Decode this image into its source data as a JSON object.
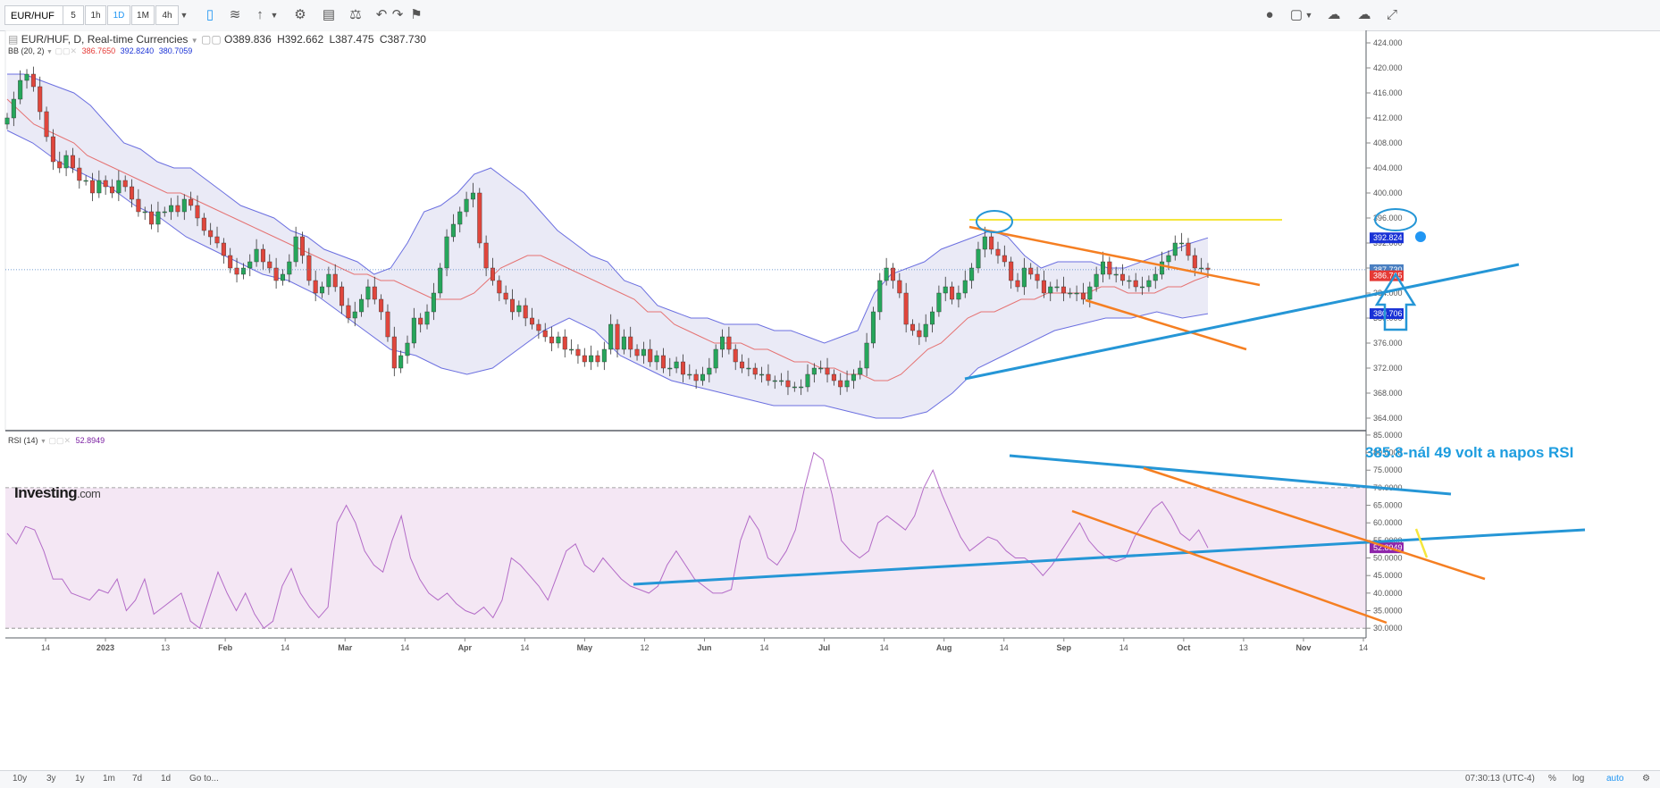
{
  "toolbar": {
    "symbol": "EUR/HUF",
    "intervals": [
      "5",
      "1h",
      "1D",
      "1M",
      "4h"
    ],
    "active_interval": "1D"
  },
  "legend": {
    "title": "EUR/HUF, D, Real-time Currencies",
    "open": "O389.836",
    "high": "H392.662",
    "low": "L387.475",
    "close": "C387.730",
    "bb_label": "BB (20, 2)",
    "bb_values": [
      "386.7650",
      "392.8240",
      "380.7059"
    ],
    "rsi_label": "RSI (14)",
    "rsi_value": "52.8949"
  },
  "annotation": "385.8-nál 49 volt a napos RSI",
  "logo": {
    "main": "Investing",
    "suffix": ".com"
  },
  "price_axis": {
    "ticks": [
      "424.000",
      "420.000",
      "416.000",
      "412.000",
      "408.000",
      "404.000",
      "400.000",
      "396.000",
      "392.000",
      "388.000",
      "384.000",
      "380.000",
      "376.000",
      "372.000",
      "368.000",
      "364.000"
    ],
    "values": [
      424,
      420,
      416,
      412,
      408,
      404,
      400,
      396,
      392,
      388,
      384,
      380,
      376,
      372,
      368,
      364
    ],
    "tags": [
      {
        "label": "392.824",
        "value": 392.824,
        "color": "#1a32d6"
      },
      {
        "label": "387.730",
        "value": 387.73,
        "color": "#4a7fc1"
      },
      {
        "label": "386.765",
        "value": 386.765,
        "color": "#e53935"
      },
      {
        "label": "380.706",
        "value": 380.706,
        "color": "#1a32d6"
      }
    ]
  },
  "rsi_axis": {
    "ticks": [
      "85.0000",
      "80.0000",
      "75.0000",
      "70.0000",
      "65.0000",
      "60.0000",
      "55.0000",
      "50.0000",
      "45.0000",
      "40.0000",
      "35.0000",
      "30.0000"
    ],
    "values": [
      85,
      80,
      75,
      70,
      65,
      60,
      55,
      50,
      45,
      40,
      35,
      30
    ],
    "tag": {
      "label": "52.8949",
      "value": 52.8949
    }
  },
  "time_axis": {
    "labels": [
      "14",
      "2023",
      "13",
      "Feb",
      "14",
      "Mar",
      "14",
      "Apr",
      "14",
      "May",
      "12",
      "Jun",
      "14",
      "Jul",
      "14",
      "Aug",
      "14",
      "Sep",
      "14",
      "Oct",
      "13",
      "Nov",
      "14"
    ]
  },
  "bottom_bar": {
    "ranges": [
      "10y",
      "3y",
      "1y",
      "1m",
      "7d",
      "1d",
      "Go to..."
    ],
    "time": "07:30:13 (UTC-4)",
    "options": [
      "%",
      "log",
      "auto"
    ]
  },
  "chart_data": {
    "type": "candlestick",
    "symbol": "EUR/HUF",
    "price_range": [
      362,
      426
    ],
    "rsi_range": [
      27.5,
      86
    ],
    "close": [
      412,
      415,
      418,
      419,
      417,
      413,
      409,
      405,
      404,
      406,
      404,
      402,
      402,
      400,
      402,
      401,
      400,
      402,
      401,
      399,
      397,
      397,
      395,
      397,
      397,
      398,
      397,
      399,
      398,
      396,
      394,
      393,
      392,
      390,
      388,
      387,
      388,
      389,
      391,
      389,
      388,
      386,
      387,
      389,
      393,
      390,
      386,
      384,
      385,
      387,
      385,
      382,
      380,
      381,
      383,
      385,
      383,
      381,
      377,
      372,
      374,
      376,
      380,
      379,
      381,
      384,
      388,
      393,
      395,
      397,
      399,
      400,
      392,
      388,
      386,
      384,
      383,
      381,
      382,
      380,
      379,
      378,
      377,
      376,
      377,
      375,
      375,
      374,
      373,
      374,
      373,
      375,
      379,
      375,
      377,
      375,
      374,
      375,
      373,
      374,
      372,
      372,
      373,
      371,
      371,
      370,
      371,
      372,
      375,
      377,
      375,
      373,
      372,
      372,
      371,
      371,
      370,
      370,
      370,
      369,
      369,
      369,
      371,
      372,
      372,
      371,
      370,
      369,
      370,
      371,
      372,
      376,
      381,
      386,
      388,
      386,
      384,
      379,
      378,
      377,
      379,
      381,
      384,
      385,
      383,
      384,
      386,
      388,
      391,
      393,
      391,
      390,
      389,
      386,
      385,
      388,
      387,
      386,
      384,
      385,
      385,
      384,
      384,
      384,
      383,
      385,
      387,
      389,
      387,
      387,
      386,
      386,
      385,
      385,
      386,
      387,
      389,
      390,
      392,
      392,
      390,
      388,
      388,
      387.73
    ],
    "bb_middle": [
      415,
      413,
      411,
      410,
      409,
      408,
      406,
      405,
      404,
      403,
      402,
      401,
      400,
      400,
      399,
      398,
      397,
      396,
      395,
      394,
      393,
      392,
      391,
      390,
      389,
      388,
      387,
      387,
      386,
      386,
      385,
      384,
      383,
      383,
      383,
      384,
      386,
      388,
      389,
      390,
      390,
      389,
      388,
      387,
      386,
      385,
      384,
      383,
      381,
      381,
      379,
      378,
      377,
      376,
      376,
      376,
      375,
      375,
      374,
      373,
      373,
      372,
      372,
      371,
      371,
      370,
      370,
      371,
      373,
      375,
      376,
      378,
      380,
      381,
      381,
      382,
      383,
      383,
      384,
      384,
      384,
      384,
      385,
      385,
      384,
      384,
      384,
      385,
      385,
      386,
      386.765
    ],
    "bb_upper": [
      419,
      419,
      418,
      417,
      416,
      414,
      411,
      408,
      407,
      405,
      404,
      404,
      402,
      400,
      398,
      397,
      396,
      394,
      393,
      391,
      390,
      389,
      387,
      388,
      392,
      397,
      398,
      400,
      403,
      404,
      402,
      400,
      397,
      394,
      392,
      390,
      389,
      386,
      385,
      382,
      381,
      380,
      380,
      379,
      379,
      379,
      378,
      378,
      377,
      376,
      377,
      378,
      384,
      387,
      388,
      389,
      391,
      392,
      393,
      394,
      393,
      390,
      388,
      389,
      389,
      389,
      388,
      388,
      389,
      390,
      391,
      392,
      392.824
    ],
    "bb_lower": [
      410,
      408,
      405,
      403,
      401,
      398,
      396,
      393,
      391,
      389,
      387,
      386,
      384,
      381,
      378,
      375,
      374,
      372,
      371,
      372,
      375,
      378,
      380,
      378,
      374,
      372,
      370,
      369,
      368,
      367,
      366,
      366,
      366,
      365,
      364,
      364,
      365,
      368,
      372,
      374,
      376,
      378,
      379,
      380,
      380,
      381,
      380,
      380.706
    ],
    "rsi": [
      57,
      54,
      59,
      58,
      52,
      44,
      44,
      40,
      39,
      38,
      41,
      40,
      44,
      35,
      38,
      44,
      34,
      36,
      38,
      40,
      32,
      30,
      38,
      46,
      40,
      35,
      40,
      34,
      30,
      32,
      42,
      47,
      40,
      36,
      33,
      36,
      60,
      65,
      60,
      52,
      48,
      46,
      55,
      62,
      50,
      44,
      40,
      38,
      40,
      37,
      35,
      34,
      36,
      33,
      38,
      50,
      48,
      45,
      42,
      38,
      45,
      52,
      54,
      48,
      46,
      50,
      47,
      44,
      42,
      41,
      40,
      42,
      48,
      52,
      48,
      44,
      42,
      40,
      40,
      41,
      55,
      62,
      58,
      50,
      48,
      52,
      58,
      70,
      80,
      78,
      68,
      55,
      52,
      50,
      52,
      60,
      62,
      60,
      58,
      62,
      70,
      75,
      68,
      62,
      56,
      52,
      54,
      56,
      55,
      52,
      50,
      50,
      48,
      45,
      48,
      52,
      56,
      60,
      55,
      52,
      50,
      49,
      50,
      56,
      60,
      64,
      66,
      62,
      57,
      55,
      58,
      52.8949
    ],
    "annotations": [
      "385.8-nál 49 volt a napos RSI"
    ]
  }
}
